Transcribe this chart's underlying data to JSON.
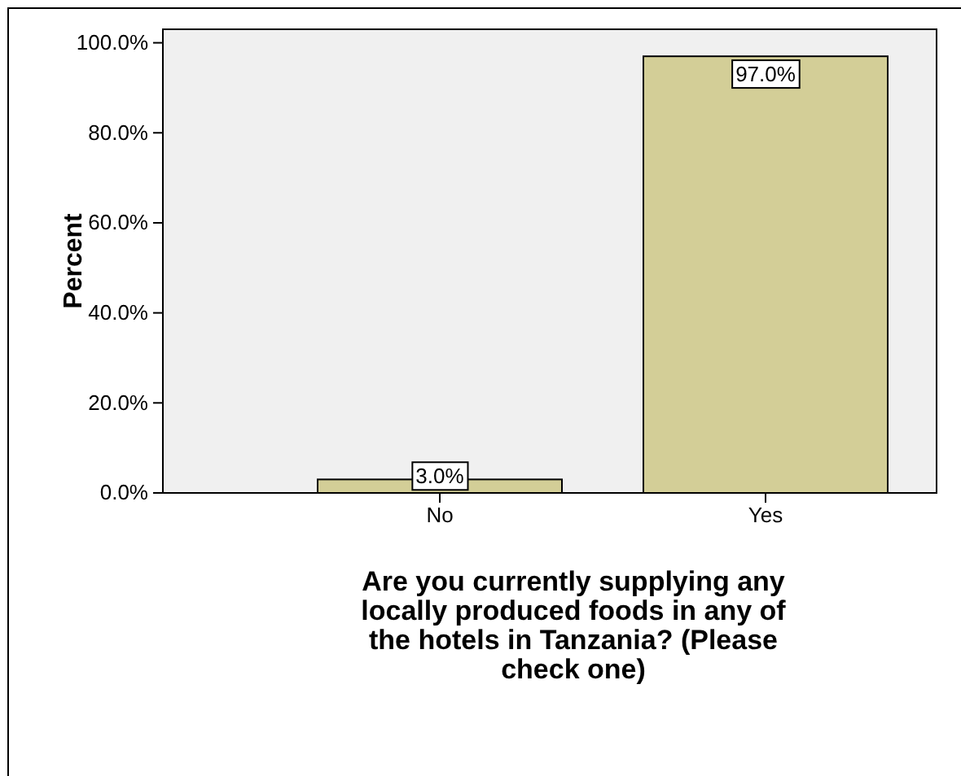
{
  "chart_data": {
    "type": "bar",
    "xlabel": "Are you currently supplying any locally produced foods in any of the hotels in Tanzania? (Please check one)",
    "ylabel": "Percent",
    "categories": [
      "No",
      "Yes"
    ],
    "values": [
      3.0,
      97.0
    ],
    "color": "#d3ce97",
    "value_labels": [
      "3.0%",
      "97.0%"
    ],
    "ylim": [
      0,
      103
    ],
    "yticks": [
      {
        "value": 0,
        "label": "0.0%"
      },
      {
        "value": 20,
        "label": "20.0%"
      },
      {
        "value": 40,
        "label": "40.0%"
      },
      {
        "value": 60,
        "label": "60.0%"
      },
      {
        "value": 80,
        "label": "80.0%"
      },
      {
        "value": 100,
        "label": "100.0%"
      }
    ],
    "grid": false
  }
}
